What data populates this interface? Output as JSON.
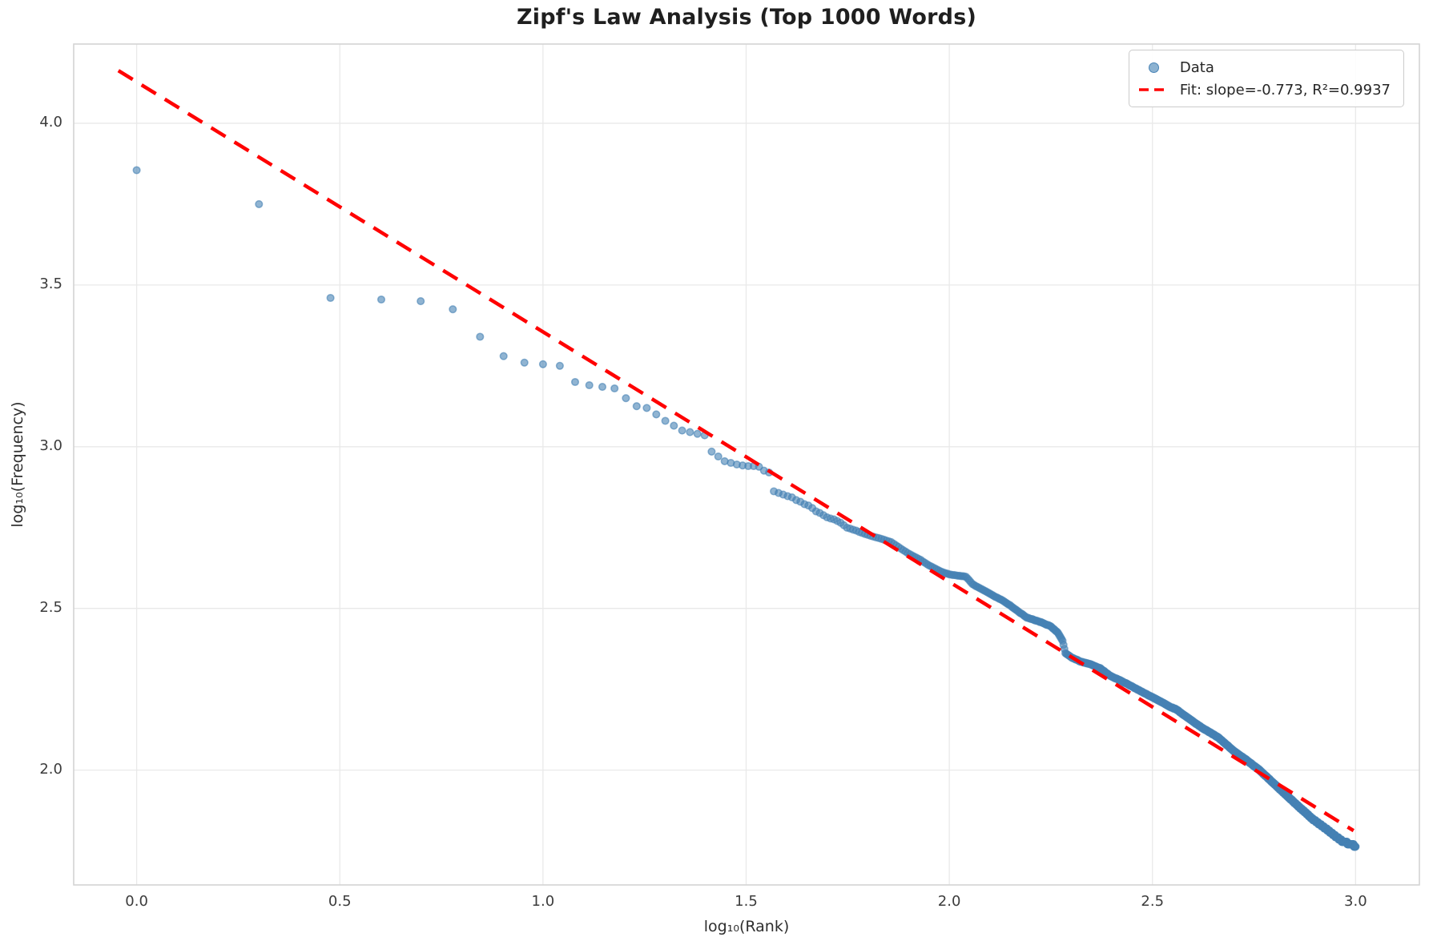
{
  "figure": {
    "title": "Zipf's Law Analysis (Top 1000 Words)"
  },
  "axes": {
    "xlabel": "log₁₀(Rank)",
    "ylabel": "log₁₀(Frequency)"
  },
  "legend": {
    "position": "upper right",
    "entries": [
      {
        "label": "Data",
        "marker": "scatter-dot"
      },
      {
        "label": "Fit: slope=-0.773, R²=0.9937",
        "marker": "red-dashed-line"
      }
    ]
  },
  "colors": {
    "scatter": "#4682B4",
    "fit_line": "#FF0000",
    "grid": "#E9E9E9",
    "spine": "#D4D4D4",
    "tick_text": "#3C3C3C"
  },
  "chart_data": {
    "type": "scatter",
    "title": "Zipf's Law Analysis (Top 1000 Words)",
    "xlabel": "log₁₀(Rank)",
    "ylabel": "log₁₀(Frequency)",
    "xlim": [
      -0.155,
      3.157
    ],
    "ylim": [
      1.645,
      4.245
    ],
    "grid": true,
    "xticks": [
      {
        "v": 0.0,
        "label": "0.0"
      },
      {
        "v": 0.5,
        "label": "0.5"
      },
      {
        "v": 1.0,
        "label": "1.0"
      },
      {
        "v": 1.5,
        "label": "1.5"
      },
      {
        "v": 2.0,
        "label": "2.0"
      },
      {
        "v": 2.5,
        "label": "2.5"
      },
      {
        "v": 3.0,
        "label": "3.0"
      }
    ],
    "yticks": [
      {
        "v": 2.0,
        "label": "2.0"
      },
      {
        "v": 2.5,
        "label": "2.5"
      },
      {
        "v": 3.0,
        "label": "3.0"
      },
      {
        "v": 3.5,
        "label": "3.5"
      },
      {
        "v": 4.0,
        "label": "4.0"
      }
    ],
    "series": [
      {
        "name": "Data",
        "type": "scatter",
        "n_points": 1000,
        "x_formula": "log10(rank) for rank = 1..1000",
        "y_meaning": "log10(word frequency)",
        "marker": {
          "color": "#4682B4",
          "alpha": 0.6,
          "radius_px": 4.3
        },
        "anchors_rank_logfreq": [
          [
            1,
            3.855
          ],
          [
            2,
            3.75
          ],
          [
            3,
            3.46
          ],
          [
            4,
            3.455
          ],
          [
            5,
            3.45
          ],
          [
            6,
            3.425
          ],
          [
            7,
            3.34
          ],
          [
            8,
            3.28
          ],
          [
            9,
            3.26
          ],
          [
            10,
            3.255
          ],
          [
            11,
            3.25
          ],
          [
            12,
            3.2
          ],
          [
            13,
            3.19
          ],
          [
            14,
            3.185
          ],
          [
            15,
            3.18
          ],
          [
            16,
            3.15
          ],
          [
            17,
            3.125
          ],
          [
            18,
            3.12
          ],
          [
            19,
            3.1
          ],
          [
            20,
            3.08
          ],
          [
            21,
            3.065
          ],
          [
            22,
            3.05
          ],
          [
            23,
            3.045
          ],
          [
            24,
            3.04
          ],
          [
            25,
            3.035
          ],
          [
            26,
            2.985
          ],
          [
            27,
            2.97
          ],
          [
            28,
            2.955
          ],
          [
            29,
            2.95
          ],
          [
            30,
            2.945
          ],
          [
            31,
            2.942
          ],
          [
            32,
            2.94
          ],
          [
            33,
            2.94
          ],
          [
            34,
            2.938
          ],
          [
            35,
            2.926
          ],
          [
            36,
            2.92
          ],
          [
            37,
            2.862
          ],
          [
            38,
            2.857
          ],
          [
            39,
            2.852
          ],
          [
            40,
            2.847
          ],
          [
            41,
            2.843
          ],
          [
            42,
            2.835
          ],
          [
            43,
            2.83
          ],
          [
            44,
            2.822
          ],
          [
            45,
            2.818
          ],
          [
            46,
            2.81
          ],
          [
            47,
            2.8
          ],
          [
            48,
            2.795
          ],
          [
            49,
            2.788
          ],
          [
            50,
            2.782
          ],
          [
            52,
            2.775
          ],
          [
            54,
            2.765
          ],
          [
            56,
            2.75
          ],
          [
            59,
            2.74
          ],
          [
            62,
            2.73
          ],
          [
            65,
            2.722
          ],
          [
            68,
            2.715
          ],
          [
            72,
            2.705
          ],
          [
            75,
            2.69
          ],
          [
            80,
            2.667
          ],
          [
            85,
            2.65
          ],
          [
            90,
            2.63
          ],
          [
            95,
            2.615
          ],
          [
            100,
            2.605
          ],
          [
            110,
            2.598
          ],
          [
            114,
            2.575
          ],
          [
            120,
            2.56
          ],
          [
            128,
            2.54
          ],
          [
            135,
            2.525
          ],
          [
            141,
            2.51
          ],
          [
            148,
            2.49
          ],
          [
            155,
            2.472
          ],
          [
            162,
            2.464
          ],
          [
            170,
            2.455
          ],
          [
            178,
            2.444
          ],
          [
            185,
            2.425
          ],
          [
            190,
            2.4
          ],
          [
            193,
            2.362
          ],
          [
            200,
            2.348
          ],
          [
            210,
            2.336
          ],
          [
            222,
            2.328
          ],
          [
            235,
            2.315
          ],
          [
            250,
            2.29
          ],
          [
            265,
            2.276
          ],
          [
            280,
            2.26
          ],
          [
            295,
            2.245
          ],
          [
            316,
            2.225
          ],
          [
            331,
            2.212
          ],
          [
            350,
            2.195
          ],
          [
            362,
            2.188
          ],
          [
            380,
            2.168
          ],
          [
            400,
            2.148
          ],
          [
            420,
            2.13
          ],
          [
            440,
            2.115
          ],
          [
            460,
            2.1
          ],
          [
            480,
            2.08
          ],
          [
            500,
            2.06
          ],
          [
            540,
            2.03
          ],
          [
            580,
            2.0
          ],
          [
            625,
            1.962
          ],
          [
            676,
            1.922
          ],
          [
            728,
            1.885
          ],
          [
            785,
            1.848
          ],
          [
            847,
            1.818
          ],
          [
            887,
            1.798
          ],
          [
            927,
            1.78
          ],
          [
            1000,
            1.765
          ]
        ]
      },
      {
        "name": "Fit: slope=-0.773, R²=0.9937",
        "type": "line",
        "style": "dashed",
        "color": "#FF0000",
        "slope": -0.773,
        "intercept": 4.128,
        "r_squared": 0.9937,
        "x_start": -0.045,
        "x_end": 2.995
      }
    ]
  }
}
